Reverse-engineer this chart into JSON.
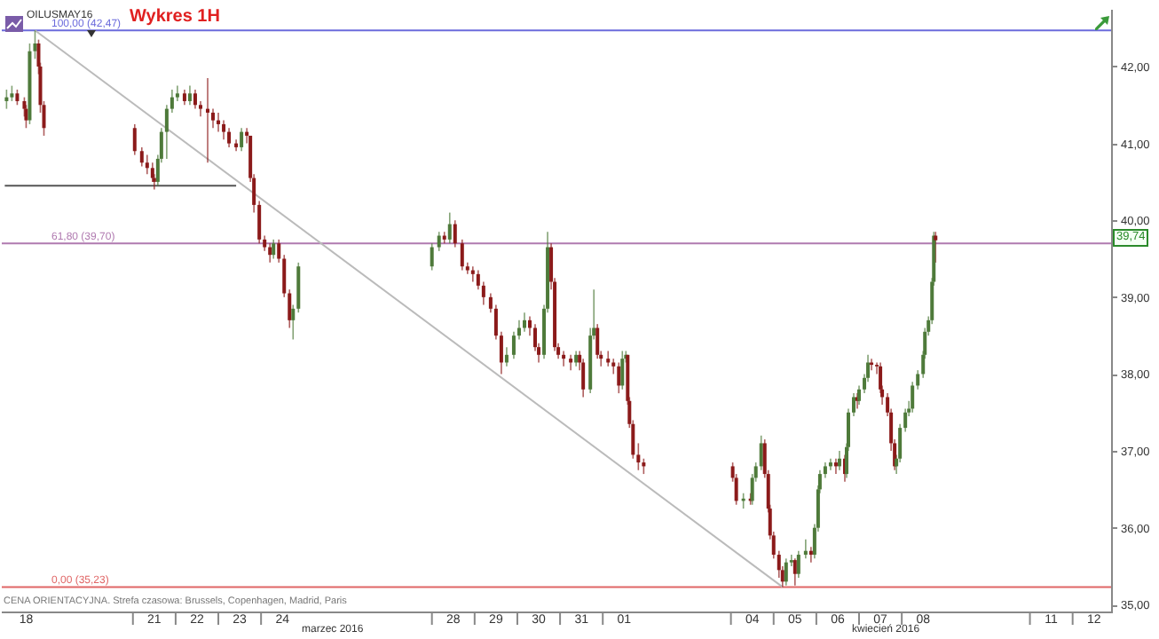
{
  "chart_data": {
    "type": "candlestick",
    "title": "Wykres 1H",
    "subtitle": "OILUSMAY16",
    "x": [
      "2016-03-18T01:00",
      "2016-03-18T04:00",
      "2016-03-18T07:00",
      "2016-03-18T11:00",
      "2016-03-18T12:00",
      "2016-03-18T14:00",
      "2016-03-18T17:00",
      "2016-03-18T19:00",
      "2016-03-18T20:00",
      "2016-03-18T22:00",
      "2016-03-21T01:00",
      "2016-03-21T05:00",
      "2016-03-21T08:00",
      "2016-03-21T11:00",
      "2016-03-21T12:00",
      "2016-03-21T14:00",
      "2016-03-21T16:00",
      "2016-03-21T19:00",
      "2016-03-21T22:00",
      "2016-03-22T01:00",
      "2016-03-22T05:00",
      "2016-03-22T08:00",
      "2016-03-22T11:00",
      "2016-03-22T14:00",
      "2016-03-22T18:00",
      "2016-03-22T21:00",
      "2016-03-23T00:00",
      "2016-03-23T03:00",
      "2016-03-23T06:00",
      "2016-03-23T10:00",
      "2016-03-23T13:00",
      "2016-03-23T16:00",
      "2016-03-23T18:00",
      "2016-03-23T20:00",
      "2016-03-23T23:00",
      "2016-03-24T02:00",
      "2016-03-24T05:00",
      "2016-03-24T07:00",
      "2016-03-24T10:00",
      "2016-03-24T13:00",
      "2016-03-24T16:00",
      "2016-03-24T18:00",
      "2016-03-24T21:00",
      "2016-03-28T00:00",
      "2016-03-28T04:00",
      "2016-03-28T07:00",
      "2016-03-28T10:00",
      "2016-03-28T13:00",
      "2016-03-28T17:00",
      "2016-03-28T20:00",
      "2016-03-28T23:00",
      "2016-03-29T02:00",
      "2016-03-29T05:00",
      "2016-03-29T09:00",
      "2016-03-29T12:00",
      "2016-03-29T15:00",
      "2016-03-29T18:00",
      "2016-03-29T22:00",
      "2016-03-30T01:00",
      "2016-03-30T04:00",
      "2016-03-30T07:00",
      "2016-03-30T10:00",
      "2016-03-30T12:00",
      "2016-03-30T15:00",
      "2016-03-30T17:00",
      "2016-03-30T19:00",
      "2016-03-30T21:00",
      "2016-03-30T23:00",
      "2016-03-31T02:00",
      "2016-03-31T06:00",
      "2016-03-31T09:00",
      "2016-03-31T11:00",
      "2016-03-31T13:00",
      "2016-03-31T17:00",
      "2016-03-31T19:00",
      "2016-03-31T21:00",
      "2016-03-31T23:00",
      "2016-04-01T03:00",
      "2016-04-01T06:00",
      "2016-04-01T09:00",
      "2016-04-01T11:00",
      "2016-04-01T13:00",
      "2016-04-01T14:00",
      "2016-04-01T15:00",
      "2016-04-01T17:00",
      "2016-04-01T20:00",
      "2016-04-01T23:00",
      "2016-04-04T01:00",
      "2016-04-04T03:00",
      "2016-04-04T07:00",
      "2016-04-04T11:00",
      "2016-04-04T12:00",
      "2016-04-04T14:00",
      "2016-04-04T17:00",
      "2016-04-04T19:00",
      "2016-04-04T21:00",
      "2016-04-04T22:00",
      "2016-04-05T00:00",
      "2016-04-05T03:00",
      "2016-04-05T05:00",
      "2016-04-05T07:00",
      "2016-04-05T10:00",
      "2016-04-05T12:00",
      "2016-04-05T14:00",
      "2016-04-05T18:00",
      "2016-04-05T21:00",
      "2016-04-05T23:00",
      "2016-04-06T01:00",
      "2016-04-06T02:00",
      "2016-04-06T05:00",
      "2016-04-06T08:00",
      "2016-04-06T11:00",
      "2016-04-06T13:00",
      "2016-04-06T16:00",
      "2016-04-06T17:00",
      "2016-04-06T18:00",
      "2016-04-06T21:00",
      "2016-04-06T23:00",
      "2016-04-07T00:00",
      "2016-04-07T03:00",
      "2016-04-07T05:00",
      "2016-04-07T07:00",
      "2016-04-07T10:00",
      "2016-04-07T12:00",
      "2016-04-07T13:00",
      "2016-04-07T16:00",
      "2016-04-07T18:00",
      "2016-04-07T20:00",
      "2016-04-07T21:00",
      "2016-04-07T23:00",
      "2016-04-08T02:00",
      "2016-04-08T04:00",
      "2016-04-08T06:00",
      "2016-04-08T09:00",
      "2016-04-08T12:00",
      "2016-04-08T13:00",
      "2016-04-08T15:00",
      "2016-04-08T17:00",
      "2016-04-08T18:00",
      "2016-04-08T19:00"
    ],
    "ohlc": [
      [
        41.55,
        41.7,
        41.45,
        41.6
      ],
      [
        41.6,
        41.75,
        41.55,
        41.65
      ],
      [
        41.65,
        41.7,
        41.5,
        41.55
      ],
      [
        41.55,
        41.6,
        41.35,
        41.45
      ],
      [
        41.45,
        41.5,
        41.2,
        41.3
      ],
      [
        41.3,
        42.3,
        41.25,
        42.2
      ],
      [
        42.2,
        42.47,
        42.1,
        42.3
      ],
      [
        42.3,
        42.35,
        41.9,
        42.0
      ],
      [
        42.0,
        42.05,
        41.4,
        41.5
      ],
      [
        41.5,
        41.55,
        41.1,
        41.2
      ],
      [
        41.2,
        41.25,
        40.85,
        40.9
      ],
      [
        40.9,
        40.95,
        40.7,
        40.75
      ],
      [
        40.75,
        40.85,
        40.6,
        40.68
      ],
      [
        40.68,
        40.75,
        40.5,
        40.55
      ],
      [
        40.55,
        40.6,
        40.4,
        40.5
      ],
      [
        40.5,
        40.85,
        40.45,
        40.8
      ],
      [
        40.8,
        41.2,
        40.75,
        41.15
      ],
      [
        41.15,
        41.5,
        40.8,
        41.45
      ],
      [
        41.45,
        41.7,
        41.4,
        41.6
      ],
      [
        41.6,
        41.75,
        41.55,
        41.65
      ],
      [
        41.65,
        41.7,
        41.5,
        41.55
      ],
      [
        41.55,
        41.75,
        41.5,
        41.65
      ],
      [
        41.65,
        41.7,
        41.45,
        41.5
      ],
      [
        41.5,
        41.55,
        41.35,
        41.45
      ],
      [
        41.45,
        41.85,
        40.75,
        41.4
      ],
      [
        41.4,
        41.45,
        41.2,
        41.3
      ],
      [
        41.3,
        41.4,
        41.15,
        41.25
      ],
      [
        41.25,
        41.3,
        41.05,
        41.15
      ],
      [
        41.15,
        41.2,
        40.95,
        41.0
      ],
      [
        41.0,
        41.05,
        40.9,
        40.95
      ],
      [
        40.95,
        41.2,
        40.9,
        41.15
      ],
      [
        41.15,
        41.2,
        41.0,
        41.1
      ],
      [
        41.1,
        41.1,
        40.5,
        40.55
      ],
      [
        40.55,
        40.6,
        40.1,
        40.2
      ],
      [
        40.2,
        40.25,
        39.7,
        39.75
      ],
      [
        39.75,
        39.8,
        39.6,
        39.65
      ],
      [
        39.65,
        39.7,
        39.45,
        39.55
      ],
      [
        39.55,
        39.75,
        39.5,
        39.7
      ],
      [
        39.7,
        39.75,
        39.45,
        39.5
      ],
      [
        39.5,
        39.55,
        39.0,
        39.05
      ],
      [
        39.05,
        39.1,
        38.6,
        38.7
      ],
      [
        38.7,
        38.9,
        38.45,
        38.85
      ],
      [
        38.85,
        39.45,
        38.8,
        39.4
      ],
      [
        39.4,
        39.7,
        39.35,
        39.65
      ],
      [
        39.65,
        39.85,
        39.6,
        39.8
      ],
      [
        39.8,
        39.85,
        39.7,
        39.75
      ],
      [
        39.75,
        40.1,
        39.7,
        39.95
      ],
      [
        39.95,
        40.0,
        39.65,
        39.7
      ],
      [
        39.7,
        39.75,
        39.35,
        39.4
      ],
      [
        39.4,
        39.45,
        39.3,
        39.35
      ],
      [
        39.35,
        39.4,
        39.2,
        39.3
      ],
      [
        39.3,
        39.35,
        39.1,
        39.15
      ],
      [
        39.15,
        39.2,
        38.9,
        39.0
      ],
      [
        39.0,
        39.05,
        38.8,
        38.85
      ],
      [
        38.85,
        38.9,
        38.45,
        38.5
      ],
      [
        38.5,
        38.55,
        38.0,
        38.15
      ],
      [
        38.15,
        38.35,
        38.1,
        38.25
      ],
      [
        38.25,
        38.55,
        38.2,
        38.5
      ],
      [
        38.5,
        38.7,
        38.45,
        38.6
      ],
      [
        38.6,
        38.8,
        38.55,
        38.7
      ],
      [
        38.7,
        38.75,
        38.5,
        38.6
      ],
      [
        38.6,
        38.65,
        38.3,
        38.35
      ],
      [
        38.35,
        38.4,
        38.15,
        38.25
      ],
      [
        38.25,
        38.9,
        38.2,
        38.85
      ],
      [
        38.85,
        39.85,
        38.8,
        39.65
      ],
      [
        39.65,
        39.7,
        39.1,
        39.2
      ],
      [
        39.2,
        39.25,
        38.3,
        38.35
      ],
      [
        38.35,
        38.4,
        38.2,
        38.25
      ],
      [
        38.25,
        38.3,
        38.1,
        38.2
      ],
      [
        38.2,
        38.25,
        38.05,
        38.15
      ],
      [
        38.15,
        38.3,
        38.1,
        38.25
      ],
      [
        38.25,
        38.3,
        38.05,
        38.15
      ],
      [
        38.15,
        38.2,
        37.7,
        37.8
      ],
      [
        37.8,
        38.6,
        37.75,
        38.5
      ],
      [
        38.5,
        39.1,
        38.45,
        38.6
      ],
      [
        38.6,
        38.65,
        38.2,
        38.25
      ],
      [
        38.25,
        38.3,
        38.1,
        38.2
      ],
      [
        38.2,
        38.3,
        38.1,
        38.15
      ],
      [
        38.15,
        38.2,
        38.0,
        38.1
      ],
      [
        38.1,
        38.15,
        37.75,
        37.85
      ],
      [
        37.85,
        38.3,
        37.8,
        38.2
      ],
      [
        38.2,
        38.3,
        38.15,
        38.25
      ],
      [
        38.25,
        38.25,
        37.6,
        37.65
      ],
      [
        37.65,
        37.7,
        37.3,
        37.35
      ],
      [
        37.35,
        37.4,
        36.9,
        36.95
      ],
      [
        36.95,
        37.1,
        36.75,
        36.85
      ],
      [
        36.85,
        36.9,
        36.7,
        36.8
      ],
      [
        36.8,
        36.85,
        36.6,
        36.65
      ],
      [
        36.65,
        36.7,
        36.3,
        36.35
      ],
      [
        36.35,
        36.45,
        36.25,
        36.38
      ],
      [
        36.38,
        36.45,
        36.3,
        36.35
      ],
      [
        36.35,
        36.7,
        36.3,
        36.65
      ],
      [
        36.65,
        36.85,
        36.6,
        36.8
      ],
      [
        36.8,
        37.2,
        36.75,
        37.1
      ],
      [
        37.1,
        37.15,
        36.65,
        36.7
      ],
      [
        36.7,
        36.75,
        36.2,
        36.25
      ],
      [
        36.25,
        36.3,
        35.85,
        35.9
      ],
      [
        35.9,
        35.95,
        35.6,
        35.65
      ],
      [
        35.65,
        35.7,
        35.35,
        35.45
      ],
      [
        35.45,
        35.5,
        35.23,
        35.3
      ],
      [
        35.3,
        35.6,
        35.25,
        35.55
      ],
      [
        35.55,
        35.65,
        35.5,
        35.58
      ],
      [
        35.58,
        35.6,
        35.25,
        35.4
      ],
      [
        35.4,
        35.7,
        35.35,
        35.65
      ],
      [
        35.65,
        35.85,
        35.6,
        35.7
      ],
      [
        35.7,
        35.75,
        35.55,
        35.65
      ],
      [
        35.65,
        36.05,
        35.6,
        36.0
      ],
      [
        36.0,
        36.55,
        35.95,
        36.5
      ],
      [
        36.5,
        36.75,
        36.45,
        36.7
      ],
      [
        36.7,
        36.85,
        36.65,
        36.8
      ],
      [
        36.8,
        36.9,
        36.75,
        36.85
      ],
      [
        36.85,
        36.9,
        36.7,
        36.8
      ],
      [
        36.8,
        37.0,
        36.75,
        36.9
      ],
      [
        36.9,
        36.95,
        36.6,
        36.7
      ],
      [
        36.7,
        37.1,
        36.65,
        37.05
      ],
      [
        37.05,
        37.55,
        37.0,
        37.5
      ],
      [
        37.5,
        37.75,
        37.45,
        37.7
      ],
      [
        37.7,
        37.75,
        37.55,
        37.65
      ],
      [
        37.65,
        37.85,
        37.6,
        37.8
      ],
      [
        37.8,
        38.0,
        37.75,
        37.95
      ],
      [
        37.95,
        38.25,
        37.9,
        38.15
      ],
      [
        38.15,
        38.2,
        38.05,
        38.12
      ],
      [
        38.12,
        38.15,
        38.0,
        38.1
      ],
      [
        38.1,
        38.15,
        37.75,
        37.8
      ],
      [
        37.8,
        37.85,
        37.6,
        37.7
      ],
      [
        37.7,
        37.75,
        37.45,
        37.5
      ],
      [
        37.5,
        37.55,
        37.0,
        37.1
      ],
      [
        37.1,
        37.15,
        36.75,
        36.8
      ],
      [
        36.8,
        36.95,
        36.7,
        36.9
      ],
      [
        36.9,
        37.35,
        36.85,
        37.3
      ],
      [
        37.3,
        37.55,
        37.25,
        37.5
      ],
      [
        37.5,
        37.65,
        37.45,
        37.55
      ],
      [
        37.55,
        37.9,
        37.5,
        37.85
      ],
      [
        37.85,
        38.05,
        37.8,
        38.0
      ],
      [
        38.0,
        38.3,
        37.95,
        38.25
      ],
      [
        38.25,
        38.6,
        38.2,
        38.55
      ],
      [
        38.55,
        38.75,
        38.5,
        38.7
      ],
      [
        38.7,
        39.25,
        38.65,
        39.2
      ],
      [
        39.2,
        39.85,
        39.15,
        39.8
      ],
      [
        39.8,
        39.85,
        39.45,
        39.74
      ]
    ],
    "colors": [
      "#4e7a3a",
      "#4e7a3a",
      "#8b1a1a",
      "#8b1a1a",
      "#8b1a1a",
      "#4e7a3a",
      "#4e7a3a",
      "#8b1a1a",
      "#8b1a1a",
      "#8b1a1a",
      "#8b1a1a",
      "#8b1a1a",
      "#8b1a1a",
      "#8b1a1a",
      "#8b1a1a",
      "#4e7a3a",
      "#4e7a3a",
      "#4e7a3a",
      "#4e7a3a",
      "#4e7a3a",
      "#8b1a1a",
      "#4e7a3a",
      "#8b1a1a",
      "#8b1a1a",
      "#8b1a1a",
      "#8b1a1a",
      "#8b1a1a",
      "#8b1a1a",
      "#8b1a1a",
      "#8b1a1a",
      "#4e7a3a",
      "#8b1a1a",
      "#8b1a1a",
      "#8b1a1a",
      "#8b1a1a",
      "#8b1a1a",
      "#8b1a1a",
      "#4e7a3a",
      "#8b1a1a",
      "#8b1a1a",
      "#8b1a1a",
      "#4e7a3a",
      "#4e7a3a",
      "#4e7a3a",
      "#4e7a3a",
      "#8b1a1a",
      "#4e7a3a",
      "#8b1a1a",
      "#8b1a1a",
      "#8b1a1a",
      "#8b1a1a",
      "#8b1a1a",
      "#8b1a1a",
      "#8b1a1a",
      "#8b1a1a",
      "#8b1a1a",
      "#4e7a3a",
      "#4e7a3a",
      "#4e7a3a",
      "#4e7a3a",
      "#8b1a1a",
      "#8b1a1a",
      "#8b1a1a",
      "#4e7a3a",
      "#4e7a3a",
      "#8b1a1a",
      "#8b1a1a",
      "#8b1a1a",
      "#8b1a1a",
      "#8b1a1a",
      "#4e7a3a",
      "#8b1a1a",
      "#8b1a1a",
      "#4e7a3a",
      "#4e7a3a",
      "#8b1a1a",
      "#8b1a1a",
      "#8b1a1a",
      "#8b1a1a",
      "#8b1a1a",
      "#4e7a3a",
      "#4e7a3a",
      "#8b1a1a",
      "#8b1a1a",
      "#8b1a1a",
      "#8b1a1a",
      "#8b1a1a",
      "#8b1a1a",
      "#8b1a1a",
      "#4e7a3a",
      "#8b1a1a",
      "#4e7a3a",
      "#4e7a3a",
      "#4e7a3a",
      "#8b1a1a",
      "#8b1a1a",
      "#8b1a1a",
      "#8b1a1a",
      "#8b1a1a",
      "#8b1a1a",
      "#4e7a3a",
      "#4e7a3a",
      "#8b1a1a",
      "#4e7a3a",
      "#4e7a3a",
      "#8b1a1a",
      "#4e7a3a",
      "#4e7a3a",
      "#4e7a3a",
      "#4e7a3a",
      "#4e7a3a",
      "#8b1a1a",
      "#4e7a3a",
      "#8b1a1a",
      "#4e7a3a",
      "#4e7a3a",
      "#4e7a3a",
      "#8b1a1a",
      "#4e7a3a",
      "#4e7a3a",
      "#4e7a3a",
      "#8b1a1a",
      "#8b1a1a",
      "#8b1a1a",
      "#8b1a1a",
      "#8b1a1a",
      "#8b1a1a",
      "#8b1a1a",
      "#4e7a3a",
      "#4e7a3a",
      "#4e7a3a",
      "#4e7a3a",
      "#4e7a3a",
      "#4e7a3a",
      "#4e7a3a",
      "#4e7a3a",
      "#4e7a3a",
      "#4e7a3a",
      "#4e7a3a",
      "#8b1a1a"
    ],
    "series": [
      {
        "type": "line",
        "x": [
          "2016-03-18T00:00",
          "2016-03-23T10:00"
        ],
        "values": [
          40.45,
          40.45
        ],
        "color": "#555555"
      },
      {
        "type": "line",
        "x": [
          "2016-03-18T17:00",
          "2016-04-05T05:00"
        ],
        "values": [
          42.47,
          35.23
        ],
        "color": "#bbbbbb"
      }
    ],
    "xlim": [
      "2016-03-17T22:19",
      "2016-04-12T21:36"
    ],
    "xticks": [
      {
        "value": "2016-03-18T12:00",
        "label": "18"
      },
      {
        "value": "2016-03-21T12:00",
        "label": "21"
      },
      {
        "value": "2016-03-22T12:00",
        "label": "22"
      },
      {
        "value": "2016-03-23T12:00",
        "label": "23"
      },
      {
        "value": "2016-03-24T12:00",
        "label": "24"
      },
      {
        "value": "2016-03-28T12:00",
        "label": "28"
      },
      {
        "value": "2016-03-29T12:00",
        "label": "29"
      },
      {
        "value": "2016-03-30T12:00",
        "label": "30"
      },
      {
        "value": "2016-03-31T12:00",
        "label": "31"
      },
      {
        "value": "2016-04-01T12:00",
        "label": "01"
      },
      {
        "value": "2016-04-04T12:00",
        "label": "04"
      },
      {
        "value": "2016-04-05T12:00",
        "label": "05"
      },
      {
        "value": "2016-04-06T12:00",
        "label": "06"
      },
      {
        "value": "2016-04-07T12:00",
        "label": "07"
      },
      {
        "value": "2016-04-08T12:00",
        "label": "08"
      },
      {
        "value": "2016-04-11T12:00",
        "label": "11"
      },
      {
        "value": "2016-04-12T12:00",
        "label": "12"
      },
      {
        "value": "2016-03-21T00:00",
        "label": null
      },
      {
        "value": "2016-03-22T00:00",
        "label": null
      },
      {
        "value": "2016-03-23T00:00",
        "label": null
      },
      {
        "value": "2016-03-24T00:00",
        "label": null
      },
      {
        "value": "2016-03-28T00:00",
        "label": null
      },
      {
        "value": "2016-03-29T00:00",
        "label": null
      },
      {
        "value": "2016-03-30T00:00",
        "label": null
      },
      {
        "value": "2016-03-31T00:00",
        "label": null
      },
      {
        "value": "2016-04-01T00:00",
        "label": null
      },
      {
        "value": "2016-04-04T00:00",
        "label": null
      },
      {
        "value": "2016-04-05T00:00",
        "label": null
      },
      {
        "value": "2016-04-06T00:00",
        "label": null
      },
      {
        "value": "2016-04-07T00:00",
        "label": null
      },
      {
        "value": "2016-04-08T00:00",
        "label": null
      },
      {
        "value": "2016-04-11T00:00",
        "label": null
      },
      {
        "value": "2016-04-12T00:00",
        "label": null
      }
    ],
    "ylim": [
      34.9,
      42.75
    ],
    "yticks": [
      {
        "value": 35,
        "label": "35,00"
      },
      {
        "value": 36,
        "label": "36,00"
      },
      {
        "value": 37,
        "label": "37,00"
      },
      {
        "value": 38,
        "label": "38,00"
      },
      {
        "value": 39,
        "label": "39,00"
      },
      {
        "value": 40,
        "label": "40,00"
      },
      {
        "value": 41,
        "label": "41,00"
      },
      {
        "value": 42,
        "label": "42,00"
      }
    ],
    "ref_lines": [
      {
        "axis": "y",
        "value": 42.47,
        "label": "100,00 (42,47)",
        "color": "#6b6bdc"
      },
      {
        "axis": "y",
        "value": 39.7,
        "label": "61,80 (39,70)",
        "color": "#b07ab0"
      },
      {
        "axis": "y",
        "value": 35.23,
        "label": "0,00 (35,23)",
        "color": "#e06666"
      }
    ],
    "annotations": [
      "CENA ORIENTACYJNA. Strefa czasowa: Brussels, Copenhagen, Madrid, Paris",
      "marzec 2016",
      "kwiecień 2016",
      "39,74"
    ]
  }
}
